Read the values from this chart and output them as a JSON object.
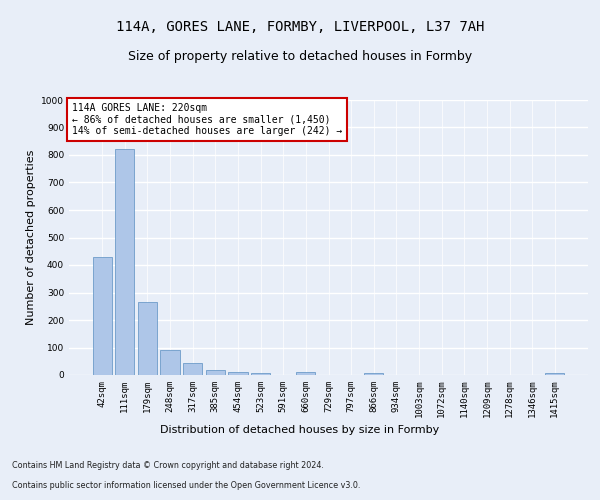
{
  "title": "114A, GORES LANE, FORMBY, LIVERPOOL, L37 7AH",
  "subtitle": "Size of property relative to detached houses in Formby",
  "xlabel": "Distribution of detached houses by size in Formby",
  "ylabel": "Number of detached properties",
  "categories": [
    "42sqm",
    "111sqm",
    "179sqm",
    "248sqm",
    "317sqm",
    "385sqm",
    "454sqm",
    "523sqm",
    "591sqm",
    "660sqm",
    "729sqm",
    "797sqm",
    "866sqm",
    "934sqm",
    "1003sqm",
    "1072sqm",
    "1140sqm",
    "1209sqm",
    "1278sqm",
    "1346sqm",
    "1415sqm"
  ],
  "values": [
    430,
    820,
    265,
    90,
    45,
    20,
    12,
    7,
    0,
    10,
    0,
    0,
    7,
    0,
    0,
    0,
    0,
    0,
    0,
    0,
    7
  ],
  "bar_color": "#aec6e8",
  "bar_edge_color": "#5a8fc2",
  "annotation_box_color": "#ffffff",
  "annotation_border_color": "#cc0000",
  "annotation_text_line1": "114A GORES LANE: 220sqm",
  "annotation_text_line2": "← 86% of detached houses are smaller (1,450)",
  "annotation_text_line3": "14% of semi-detached houses are larger (242) →",
  "ylim": [
    0,
    1000
  ],
  "yticks": [
    0,
    100,
    200,
    300,
    400,
    500,
    600,
    700,
    800,
    900,
    1000
  ],
  "background_color": "#e8eef8",
  "plot_background_color": "#e8eef8",
  "grid_color": "#ffffff",
  "title_fontsize": 10,
  "subtitle_fontsize": 9,
  "xlabel_fontsize": 8,
  "ylabel_fontsize": 8,
  "tick_fontsize": 6.5,
  "ann_fontsize": 7,
  "footer_line1": "Contains HM Land Registry data © Crown copyright and database right 2024.",
  "footer_line2": "Contains public sector information licensed under the Open Government Licence v3.0."
}
